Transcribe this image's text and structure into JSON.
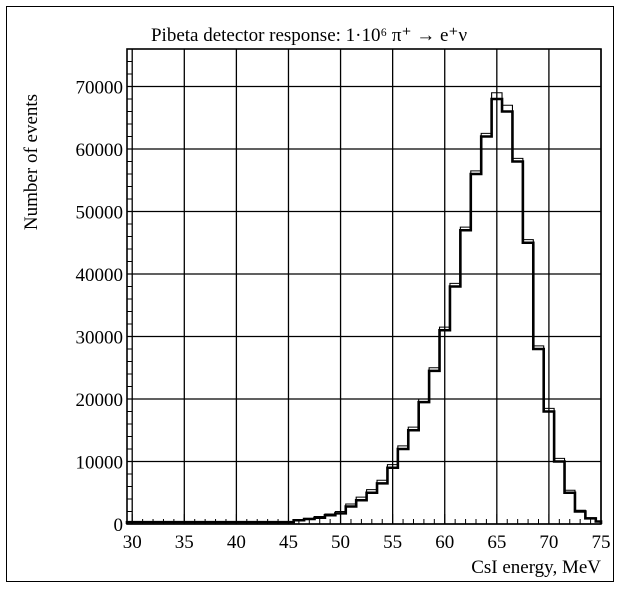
{
  "chart_data": {
    "type": "histogram",
    "title": "Pibeta detector response: 1·10⁶ π⁺ → e⁺ν",
    "xlabel": "CsI energy, MeV",
    "ylabel": "Number of events",
    "xlim": [
      29.5,
      75
    ],
    "ylim": [
      0,
      76000
    ],
    "bin_width": 1,
    "x_ticks": [
      30,
      35,
      40,
      45,
      50,
      55,
      60,
      65,
      70,
      75
    ],
    "y_ticks": [
      0,
      10000,
      20000,
      30000,
      40000,
      50000,
      60000,
      70000
    ],
    "x_tick_labels": [
      "30",
      "35",
      "40",
      "45",
      "50",
      "55",
      "60",
      "65",
      "70",
      "75"
    ],
    "y_tick_labels": [
      "0",
      "10000",
      "20000",
      "30000",
      "40000",
      "50000",
      "60000",
      "70000"
    ],
    "grid": true,
    "series": [
      {
        "style": "thick",
        "bin_edges": [
          29.5,
          30.5,
          31.5,
          32.5,
          33.5,
          34.5,
          35.5,
          36.5,
          37.5,
          38.5,
          39.5,
          40.5,
          41.5,
          42.5,
          43.5,
          44.5,
          45.5,
          46.5,
          47.5,
          48.5,
          49.5,
          50.5,
          51.5,
          52.5,
          53.5,
          54.5,
          55.5,
          56.5,
          57.5,
          58.5,
          59.5,
          60.5,
          61.5,
          62.5,
          63.5,
          64.5,
          65.5,
          66.5,
          67.5,
          68.5,
          69.5,
          70.5,
          71.5,
          72.5,
          73.5,
          74.5,
          75
        ],
        "values": [
          300,
          300,
          300,
          300,
          300,
          300,
          300,
          300,
          300,
          300,
          300,
          300,
          300,
          300,
          300,
          300,
          600,
          800,
          1000,
          1400,
          1700,
          2800,
          3800,
          5000,
          6500,
          9000,
          12000,
          15000,
          19500,
          24500,
          31000,
          38000,
          47000,
          56000,
          62000,
          68000,
          66000,
          58000,
          45000,
          28000,
          18000,
          10000,
          5000,
          2000,
          900,
          400
        ]
      },
      {
        "style": "thin",
        "bin_edges": [
          29.5,
          30.5,
          31.5,
          32.5,
          33.5,
          34.5,
          35.5,
          36.5,
          37.5,
          38.5,
          39.5,
          40.5,
          41.5,
          42.5,
          43.5,
          44.5,
          45.5,
          46.5,
          47.5,
          48.5,
          49.5,
          50.5,
          51.5,
          52.5,
          53.5,
          54.5,
          55.5,
          56.5,
          57.5,
          58.5,
          59.5,
          60.5,
          61.5,
          62.5,
          63.5,
          64.5,
          65.5,
          66.5,
          67.5,
          68.5,
          69.5,
          70.5,
          71.5,
          72.5,
          73.5,
          74.5,
          75
        ],
        "values": [
          300,
          300,
          300,
          300,
          300,
          300,
          300,
          300,
          300,
          300,
          300,
          300,
          300,
          300,
          300,
          300,
          700,
          900,
          1200,
          1600,
          2000,
          3200,
          4300,
          5500,
          7000,
          9500,
          12500,
          15500,
          20000,
          25000,
          31500,
          38500,
          47500,
          56500,
          62500,
          69000,
          67000,
          58500,
          45500,
          28500,
          18500,
          10500,
          5400,
          2200,
          1000,
          450
        ]
      }
    ]
  }
}
